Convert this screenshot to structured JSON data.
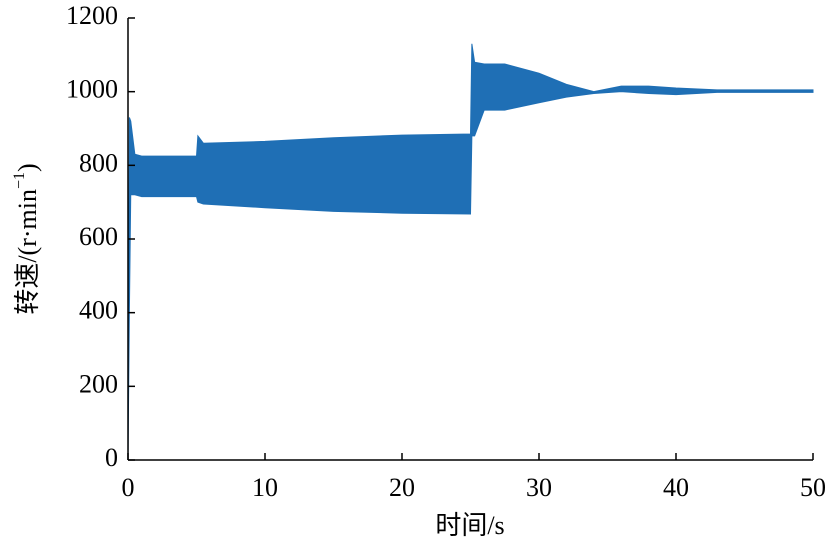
{
  "chart_data": {
    "type": "band",
    "color": "#1f6fb5",
    "x": [
      0,
      0.1,
      0.2,
      0.5,
      1,
      5,
      5.1,
      5.5,
      10,
      15,
      20,
      25,
      25.1,
      25.3,
      26,
      27.5,
      30,
      32,
      34,
      36,
      38,
      40,
      43,
      50
    ],
    "high": [
      0,
      930,
      920,
      830,
      825,
      825,
      880,
      860,
      865,
      875,
      882,
      885,
      1130,
      1080,
      1075,
      1075,
      1050,
      1020,
      1000,
      1015,
      1015,
      1010,
      1005,
      1005
    ],
    "low": [
      0,
      400,
      720,
      720,
      715,
      715,
      700,
      695,
      685,
      675,
      670,
      668,
      880,
      880,
      950,
      950,
      970,
      985,
      995,
      1000,
      995,
      992,
      998,
      998
    ],
    "xlim": [
      0,
      50
    ],
    "xticks": [
      0,
      10,
      20,
      30,
      40,
      50
    ],
    "ylim": [
      0,
      1200
    ],
    "yticks": [
      0,
      200,
      400,
      600,
      800,
      1000,
      1200
    ],
    "xlabel": "时间/s",
    "ylabel": [
      "转速/(r·min",
      "−1",
      ")"
    ]
  }
}
